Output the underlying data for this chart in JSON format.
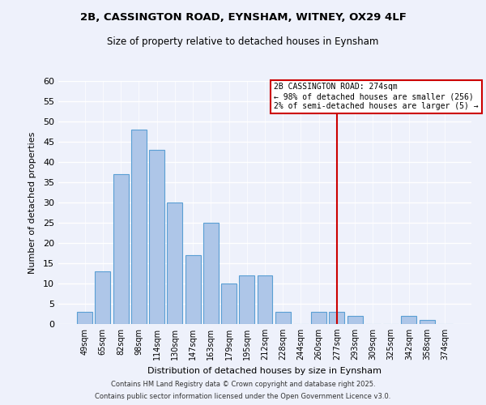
{
  "title_line1": "2B, CASSINGTON ROAD, EYNSHAM, WITNEY, OX29 4LF",
  "title_line2": "Size of property relative to detached houses in Eynsham",
  "xlabel": "Distribution of detached houses by size in Eynsham",
  "ylabel": "Number of detached properties",
  "bar_labels": [
    "49sqm",
    "65sqm",
    "82sqm",
    "98sqm",
    "114sqm",
    "130sqm",
    "147sqm",
    "163sqm",
    "179sqm",
    "195sqm",
    "212sqm",
    "228sqm",
    "244sqm",
    "260sqm",
    "277sqm",
    "293sqm",
    "309sqm",
    "325sqm",
    "342sqm",
    "358sqm",
    "374sqm"
  ],
  "bar_values": [
    3,
    13,
    37,
    48,
    43,
    30,
    17,
    25,
    10,
    12,
    12,
    3,
    0,
    3,
    3,
    2,
    0,
    0,
    2,
    1,
    0
  ],
  "bar_color": "#aec6e8",
  "bar_edge_color": "#5a9fd4",
  "annotation_title": "2B CASSINGTON ROAD: 274sqm",
  "annotation_line2": "← 98% of detached houses are smaller (256)",
  "annotation_line3": "2% of semi-detached houses are larger (5) →",
  "vline_x_index": 14,
  "vline_color": "#cc0000",
  "ylim": [
    0,
    60
  ],
  "yticks": [
    0,
    5,
    10,
    15,
    20,
    25,
    30,
    35,
    40,
    45,
    50,
    55,
    60
  ],
  "footnote1": "Contains HM Land Registry data © Crown copyright and database right 2025.",
  "footnote2": "Contains public sector information licensed under the Open Government Licence v3.0.",
  "bg_color": "#eef1fb"
}
